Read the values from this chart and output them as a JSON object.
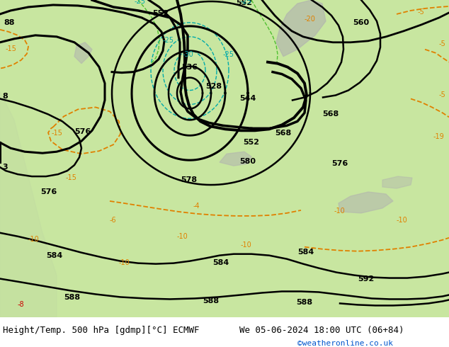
{
  "title_left": "Height/Temp. 500 hPa [gdmp][°C] ECMWF",
  "title_right": "We 05-06-2024 18:00 UTC (06+84)",
  "credit": "©weatheronline.co.uk",
  "bg_land": "#c8e6a0",
  "bg_gray": "#b0b0b0",
  "bg_white_sea": "#dce8d0",
  "bottom_bar_color": "#ffffff",
  "title_fontsize": 9,
  "credit_color": "#0055cc",
  "credit_fontsize": 8,
  "black_lw": 2.0,
  "orange_color": "#e08000",
  "cyan_color": "#00aaaa",
  "red_color": "#cc0000",
  "green_color": "#009900"
}
